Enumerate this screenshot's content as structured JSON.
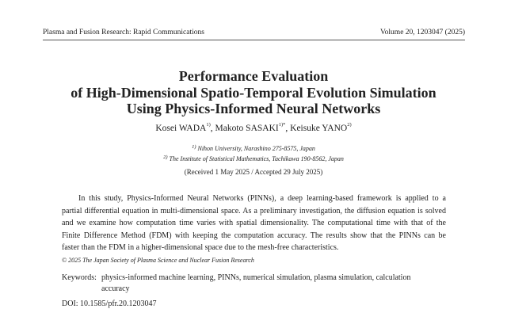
{
  "header": {
    "journal": "Plasma and Fusion Research: Rapid Communications",
    "volume": "Volume 20, 1203047 (2025)"
  },
  "title_lines": [
    "Performance Evaluation",
    "of High-Dimensional Spatio-Temporal Evolution Simulation",
    "Using Physics-Informed Neural Networks"
  ],
  "authors": [
    {
      "name": "Kosei WADA",
      "sup": "1)",
      "sep": ", "
    },
    {
      "name": "Makoto SASAKI",
      "sup": "1)*",
      "sep": ", "
    },
    {
      "name": "Keisuke YANO",
      "sup": "2)",
      "sep": ""
    }
  ],
  "affiliations": [
    {
      "sup": "1)",
      "text": "Nihon University, Narashino 275-8575, Japan"
    },
    {
      "sup": "2)",
      "text": "The Institute of Statistical Mathematics, Tachikawa 190-8562, Japan"
    }
  ],
  "received": "(Received 1 May 2025 / Accepted 29 July 2025)",
  "abstract_lines": [
    "In this study, Physics-Informed Neural Networks (PINNs), a deep learning-based framework is applied to a",
    "partial differential equation in multi-dimensional space. As a preliminary investigation, the diffusion equation is solved",
    "and we examine how computation time varies with spatial dimensionality. The computational time with that of the",
    "Finite Difference Method (FDM) with keeping the computation accuracy. The results show that the PINNs can be",
    "faster than the FDM in a higher-dimensional space due to the mesh-free characteristics."
  ],
  "copyright": "© 2025 The Japan Society of Plasma Science and Nuclear Fusion Research",
  "keywords": {
    "label": "Keywords:",
    "line1": "physics-informed machine learning, PINNs, numerical simulation, plasma simulation, calculation",
    "line2": "accuracy"
  },
  "doi": "DOI: 10.1585/pfr.20.1203047"
}
